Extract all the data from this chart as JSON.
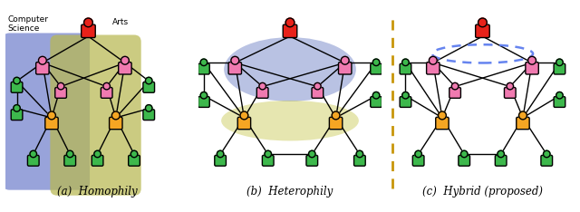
{
  "subtitles": [
    "(a)  Homophily",
    "(b)  Heterophily",
    "(c)  Hybrid (proposed)"
  ],
  "node_colors": {
    "red": "#e8221a",
    "pink": "#f07ab0",
    "orange": "#f5a623",
    "green": "#3db84c"
  },
  "bg_colors": {
    "blue": "#7080cc",
    "yellow_green": "#b8b850",
    "blue_het": "#8090cc",
    "yellow_het": "#c8c870"
  }
}
